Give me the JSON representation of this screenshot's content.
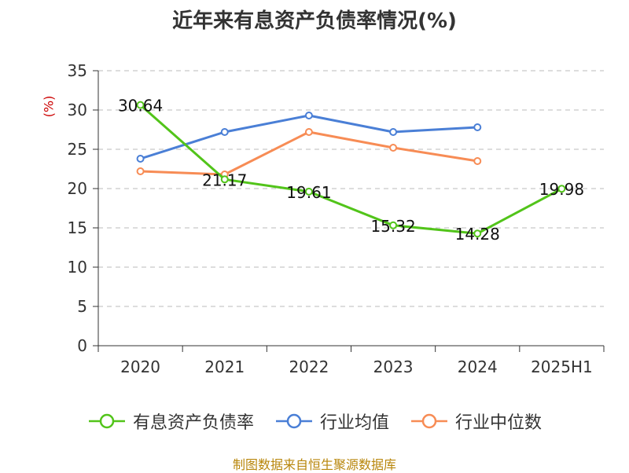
{
  "chart_data": {
    "type": "line",
    "title": "近年来有息资产负债率情况(%)",
    "ylabel": "(%)",
    "xlabel": "",
    "categories": [
      "2020",
      "2021",
      "2022",
      "2023",
      "2024",
      "2025H1"
    ],
    "ylim": [
      0,
      35
    ],
    "yticks": [
      0,
      5,
      10,
      15,
      20,
      25,
      30,
      35
    ],
    "grid": true,
    "legend_position": "bottom",
    "series": [
      {
        "name": "有息资产负债率",
        "color": "#52c41a",
        "values": [
          30.64,
          21.17,
          19.61,
          15.32,
          14.28,
          19.98
        ],
        "labels": [
          "30.64",
          "21.17",
          "19.61",
          "15.32",
          "14.28",
          "19.98"
        ]
      },
      {
        "name": "行业均值",
        "color": "#4a7fd6",
        "values": [
          23.8,
          27.2,
          29.3,
          27.2,
          27.8,
          null
        ]
      },
      {
        "name": "行业中位数",
        "color": "#f78c55",
        "values": [
          22.2,
          21.8,
          27.2,
          25.2,
          23.5,
          null
        ]
      }
    ]
  },
  "source": "制图数据来自恒生聚源数据库"
}
